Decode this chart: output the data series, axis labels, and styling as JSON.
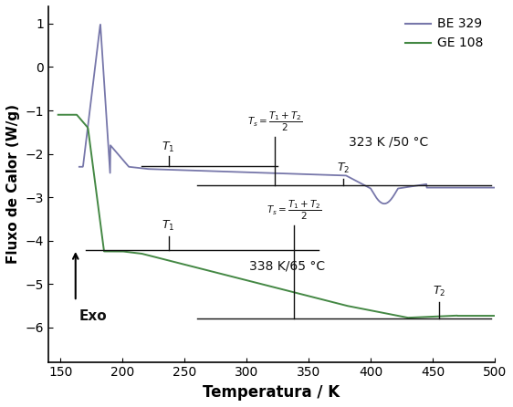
{
  "title": "",
  "xlabel": "Temperatura / K",
  "ylabel": "Fluxo de Calor (W/g)",
  "xlim": [
    140,
    500
  ],
  "ylim": [
    -6.8,
    1.4
  ],
  "xticks": [
    150,
    200,
    250,
    300,
    350,
    400,
    450,
    500
  ],
  "yticks": [
    -6,
    -5,
    -4,
    -3,
    -2,
    -1,
    0,
    1
  ],
  "be329_color": "#7777aa",
  "ge108_color": "#448844",
  "baseline_color": "#111111",
  "annotation_color": "#111111",
  "be329_label": "BE 329",
  "ge108_label": "GE 108",
  "annotation_be329": "323 K /50 °C",
  "annotation_ge108": "338 K/65 °C",
  "T1_be": 237,
  "Ts_be": 323,
  "T2_be": 378,
  "T1_ge": 237,
  "Ts_ge": 338,
  "T2_ge": 455,
  "exo_label": "Exo",
  "background_color": "#ffffff",
  "be_baseline1_x": [
    215,
    325
  ],
  "be_baseline1_y": -2.28,
  "be_baseline2_x": [
    260,
    497
  ],
  "be_baseline2_y": -2.72,
  "ge_baseline1_x": [
    170,
    358
  ],
  "ge_baseline1_y": -4.22,
  "ge_baseline2_x": [
    260,
    497
  ],
  "ge_baseline2_y": -5.8
}
